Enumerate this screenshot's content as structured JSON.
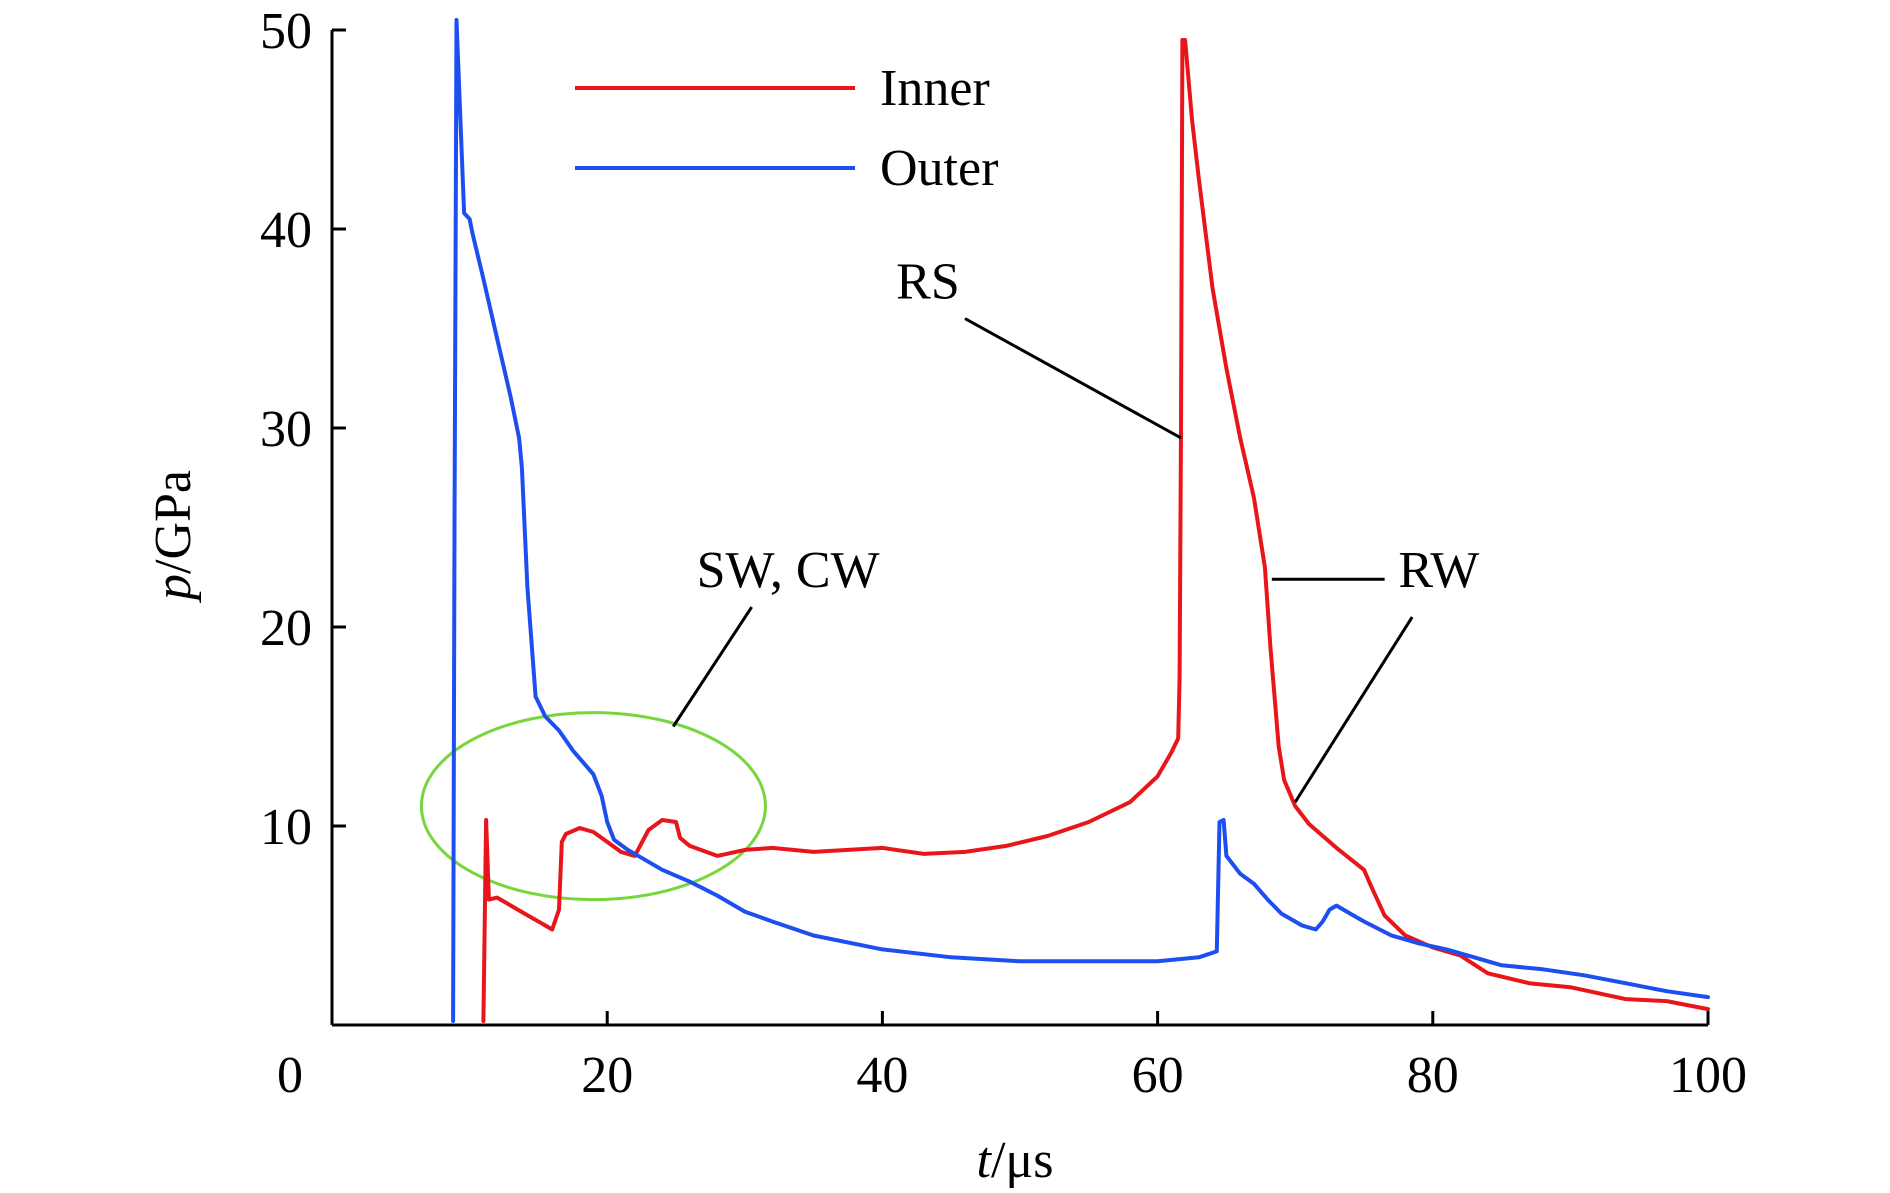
{
  "chart_data": {
    "type": "line",
    "title": "",
    "xlabel_var": "t",
    "xlabel_unit": "/μs",
    "ylabel_var": "p",
    "ylabel_unit": "/GPa",
    "xlim": [
      0,
      100
    ],
    "ylim": [
      0,
      50
    ],
    "x_ticks": [
      0,
      20,
      40,
      60,
      80,
      100
    ],
    "y_ticks": [
      10,
      20,
      30,
      40,
      50
    ],
    "x_tick_labels": [
      "0",
      "20",
      "40",
      "60",
      "80",
      "100"
    ],
    "y_tick_labels": [
      "10",
      "20",
      "30",
      "40",
      "50"
    ],
    "grid": false,
    "legend_position": "top-center",
    "series": [
      {
        "name": "Inner",
        "color": "#e8161b",
        "points": [
          [
            11.0,
            0.2
          ],
          [
            11.2,
            10.3
          ],
          [
            11.4,
            6.3
          ],
          [
            12.0,
            6.4
          ],
          [
            13.0,
            6.0
          ],
          [
            14.0,
            5.6
          ],
          [
            15.0,
            5.2
          ],
          [
            16.0,
            4.8
          ],
          [
            16.5,
            5.8
          ],
          [
            16.7,
            9.2
          ],
          [
            17.0,
            9.6
          ],
          [
            18.0,
            9.9
          ],
          [
            19.0,
            9.7
          ],
          [
            20.0,
            9.2
          ],
          [
            21.0,
            8.7
          ],
          [
            22.0,
            8.5
          ],
          [
            23.0,
            9.8
          ],
          [
            24.0,
            10.3
          ],
          [
            25.0,
            10.2
          ],
          [
            25.3,
            9.4
          ],
          [
            26.0,
            9.0
          ],
          [
            28.0,
            8.5
          ],
          [
            30.0,
            8.8
          ],
          [
            32.0,
            8.9
          ],
          [
            35.0,
            8.7
          ],
          [
            40.0,
            8.9
          ],
          [
            43.0,
            8.6
          ],
          [
            46.0,
            8.7
          ],
          [
            49.0,
            9.0
          ],
          [
            52.0,
            9.5
          ],
          [
            55.0,
            10.2
          ],
          [
            58.0,
            11.2
          ],
          [
            60.0,
            12.5
          ],
          [
            61.0,
            13.7
          ],
          [
            61.5,
            14.4
          ],
          [
            61.6,
            17.5
          ],
          [
            61.7,
            30.0
          ],
          [
            61.8,
            49.5
          ],
          [
            62.0,
            49.5
          ],
          [
            62.5,
            45.5
          ],
          [
            63.0,
            42.5
          ],
          [
            64.0,
            37.0
          ],
          [
            65.0,
            33.0
          ],
          [
            66.0,
            29.5
          ],
          [
            67.0,
            26.5
          ],
          [
            67.8,
            23.0
          ],
          [
            68.2,
            19.0
          ],
          [
            68.8,
            14.0
          ],
          [
            69.2,
            12.3
          ],
          [
            70.0,
            11.0
          ],
          [
            71.0,
            10.1
          ],
          [
            73.0,
            8.9
          ],
          [
            75.0,
            7.8
          ],
          [
            75.5,
            7.0
          ],
          [
            76.5,
            5.5
          ],
          [
            78.0,
            4.5
          ],
          [
            80.0,
            3.9
          ],
          [
            82.0,
            3.5
          ],
          [
            84.0,
            2.6
          ],
          [
            87.0,
            2.1
          ],
          [
            90.0,
            1.9
          ],
          [
            94.0,
            1.3
          ],
          [
            97.0,
            1.2
          ],
          [
            100.0,
            0.8
          ]
        ]
      },
      {
        "name": "Outer",
        "color": "#1d4ff0",
        "points": [
          [
            8.8,
            0.2
          ],
          [
            8.9,
            25.0
          ],
          [
            9.05,
            50.5
          ],
          [
            9.3,
            46.0
          ],
          [
            9.6,
            40.8
          ],
          [
            10.0,
            40.5
          ],
          [
            10.2,
            39.8
          ],
          [
            11.0,
            37.5
          ],
          [
            12.0,
            34.5
          ],
          [
            13.0,
            31.5
          ],
          [
            13.6,
            29.5
          ],
          [
            13.8,
            28.0
          ],
          [
            14.2,
            22.0
          ],
          [
            14.8,
            16.5
          ],
          [
            15.5,
            15.5
          ],
          [
            16.5,
            14.8
          ],
          [
            17.5,
            13.8
          ],
          [
            19.0,
            12.6
          ],
          [
            19.6,
            11.5
          ],
          [
            20.0,
            10.2
          ],
          [
            20.5,
            9.3
          ],
          [
            21.5,
            8.8
          ],
          [
            22.5,
            8.4
          ],
          [
            24.0,
            7.8
          ],
          [
            26.0,
            7.2
          ],
          [
            28.0,
            6.5
          ],
          [
            30.0,
            5.7
          ],
          [
            32.0,
            5.2
          ],
          [
            35.0,
            4.5
          ],
          [
            40.0,
            3.8
          ],
          [
            45.0,
            3.4
          ],
          [
            50.0,
            3.2
          ],
          [
            55.0,
            3.2
          ],
          [
            60.0,
            3.2
          ],
          [
            63.0,
            3.4
          ],
          [
            64.3,
            3.7
          ],
          [
            64.5,
            10.2
          ],
          [
            64.8,
            10.3
          ],
          [
            65.0,
            8.5
          ],
          [
            66.0,
            7.6
          ],
          [
            67.0,
            7.1
          ],
          [
            68.0,
            6.3
          ],
          [
            69.0,
            5.6
          ],
          [
            70.5,
            5.0
          ],
          [
            71.5,
            4.8
          ],
          [
            72.0,
            5.2
          ],
          [
            72.5,
            5.8
          ],
          [
            73.0,
            6.0
          ],
          [
            74.0,
            5.6
          ],
          [
            75.0,
            5.2
          ],
          [
            77.0,
            4.5
          ],
          [
            79.0,
            4.1
          ],
          [
            81.0,
            3.8
          ],
          [
            83.0,
            3.4
          ],
          [
            85.0,
            3.0
          ],
          [
            88.0,
            2.8
          ],
          [
            91.0,
            2.5
          ],
          [
            94.0,
            2.1
          ],
          [
            97.0,
            1.7
          ],
          [
            100.0,
            1.4
          ]
        ]
      }
    ],
    "annotations": [
      {
        "text": "RS",
        "label_x": 41.0,
        "label_y": 36.5,
        "line_from": [
          46.0,
          35.5
        ],
        "line_to": [
          61.7,
          29.5
        ]
      },
      {
        "text": "SW, CW",
        "label_x": 26.5,
        "label_y": 22.0,
        "line_from": [
          30.5,
          21.0
        ],
        "line_to": [
          24.8,
          15.0
        ]
      },
      {
        "text": "RW",
        "label_x": 77.5,
        "label_y": 22.0,
        "line_from": [
          76.5,
          22.4
        ],
        "line_to": [
          68.3,
          22.4
        ]
      },
      {
        "text": "",
        "line_from": [
          78.5,
          20.5
        ],
        "line_to": [
          70.0,
          11.2
        ]
      }
    ],
    "highlight_ellipse": {
      "cx": 19.0,
      "cy": 11.0,
      "rx": 12.5,
      "ry": 4.7,
      "color": "#77d63b"
    }
  }
}
